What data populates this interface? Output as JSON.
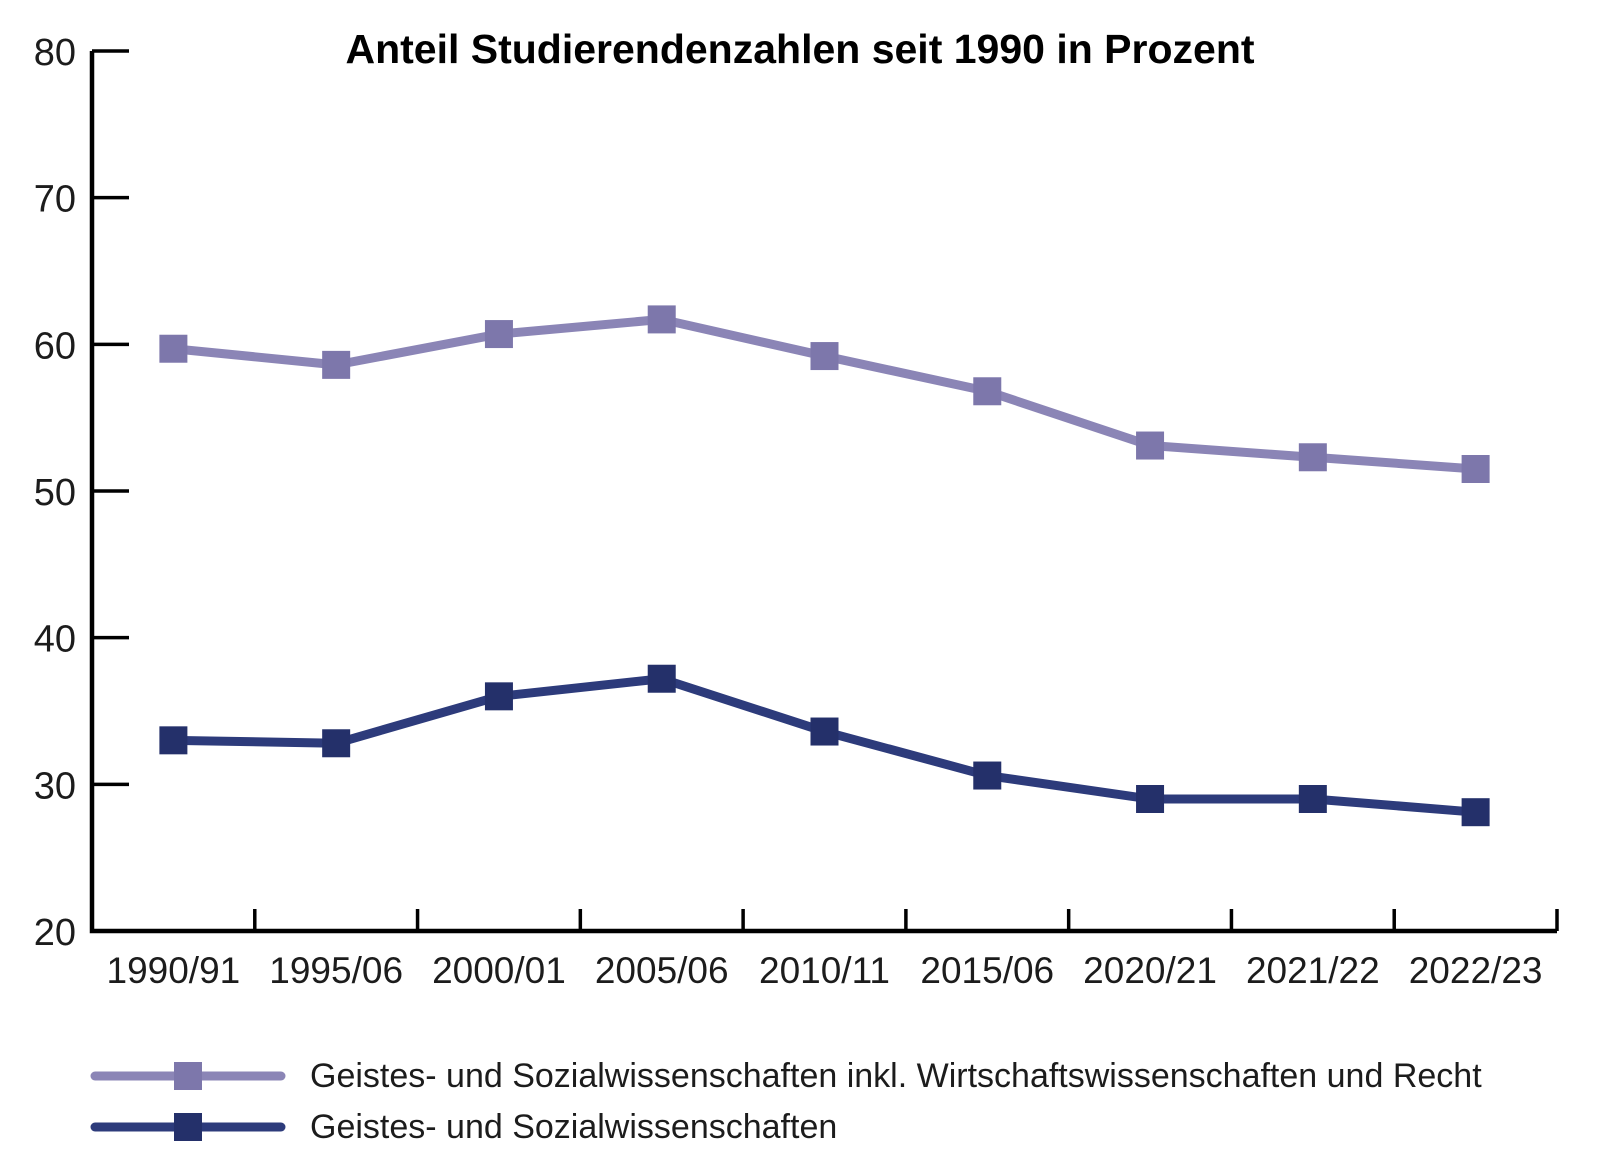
{
  "chart_data": {
    "type": "line",
    "title": "Anteil Studierendenzahlen seit 1990 in Prozent",
    "categories": [
      "1990/91",
      "1995/06",
      "2000/01",
      "2005/06",
      "2010/11",
      "2015/06",
      "2020/21",
      "2021/22",
      "2022/23"
    ],
    "series": [
      {
        "name": "Geistes- und Sozialwissenschaften inkl. Wirtschaftswissenschaften und Recht",
        "values": [
          59.7,
          58.6,
          60.7,
          61.7,
          59.2,
          56.8,
          53.1,
          52.3,
          51.5
        ],
        "line_color": "#8b85b6",
        "marker_color": "#7d77ab"
      },
      {
        "name": "Geistes- und Sozialwissenschaften",
        "values": [
          33.0,
          32.8,
          36.0,
          37.2,
          33.6,
          30.6,
          29.0,
          29.0,
          28.1
        ],
        "line_color": "#2d3b7b",
        "marker_color": "#24306a"
      }
    ],
    "ylim": [
      20,
      80
    ],
    "yticks": [
      20,
      30,
      40,
      50,
      60,
      70,
      80
    ],
    "xlabel": "",
    "ylabel": "",
    "grid": false,
    "legend_position": "bottom-left",
    "marker_shape": "square",
    "axis_color": "#000000",
    "tick_label_color": "#1c1c1c"
  }
}
